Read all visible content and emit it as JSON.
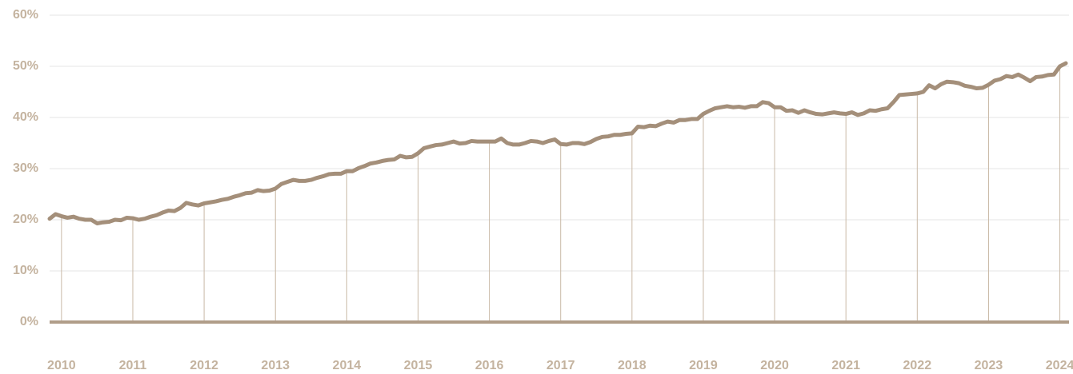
{
  "chart_data": {
    "type": "line",
    "categories": [
      null,
      null,
      "2010",
      null,
      null,
      null,
      null,
      null,
      null,
      null,
      null,
      null,
      null,
      null,
      "2011",
      null,
      null,
      null,
      null,
      null,
      null,
      null,
      null,
      null,
      null,
      null,
      "2012",
      null,
      null,
      null,
      null,
      null,
      null,
      null,
      null,
      null,
      null,
      null,
      "2013",
      null,
      null,
      null,
      null,
      null,
      null,
      null,
      null,
      null,
      null,
      null,
      "2014",
      null,
      null,
      null,
      null,
      null,
      null,
      null,
      null,
      null,
      null,
      null,
      "2015",
      null,
      null,
      null,
      null,
      null,
      null,
      null,
      null,
      null,
      null,
      null,
      "2016",
      null,
      null,
      null,
      null,
      null,
      null,
      null,
      null,
      null,
      null,
      null,
      "2017",
      null,
      null,
      null,
      null,
      null,
      null,
      null,
      null,
      null,
      null,
      null,
      "2018",
      null,
      null,
      null,
      null,
      null,
      null,
      null,
      null,
      null,
      null,
      null,
      "2019",
      null,
      null,
      null,
      null,
      null,
      null,
      null,
      null,
      null,
      null,
      null,
      "2020",
      null,
      null,
      null,
      null,
      null,
      null,
      null,
      null,
      null,
      null,
      null,
      "2021",
      null,
      null,
      null,
      null,
      null,
      null,
      null,
      null,
      null,
      null,
      null,
      "2022",
      null,
      null,
      null,
      null,
      null,
      null,
      null,
      null,
      null,
      null,
      null,
      "2023",
      null,
      null,
      null,
      null,
      null,
      null,
      null,
      null,
      null,
      null,
      null,
      "2024",
      null
    ],
    "values": [
      20.2,
      21.1,
      20.7,
      20.4,
      20.6,
      20.2,
      20.0,
      20.0,
      19.3,
      19.5,
      19.6,
      20.0,
      19.9,
      20.4,
      20.3,
      20.0,
      20.2,
      20.6,
      20.9,
      21.4,
      21.8,
      21.7,
      22.3,
      23.3,
      23.0,
      22.8,
      23.2,
      23.4,
      23.6,
      23.9,
      24.1,
      24.5,
      24.8,
      25.2,
      25.3,
      25.8,
      25.6,
      25.7,
      26.1,
      27.0,
      27.4,
      27.8,
      27.6,
      27.6,
      27.8,
      28.2,
      28.5,
      28.9,
      29.0,
      29.0,
      29.5,
      29.5,
      30.1,
      30.5,
      31.0,
      31.2,
      31.5,
      31.7,
      31.8,
      32.5,
      32.2,
      32.3,
      33.0,
      34.0,
      34.3,
      34.6,
      34.7,
      35.0,
      35.3,
      34.9,
      35.0,
      35.4,
      35.3,
      35.3,
      35.3,
      35.3,
      35.9,
      35.0,
      34.7,
      34.7,
      35.0,
      35.4,
      35.3,
      35.0,
      35.4,
      35.7,
      34.8,
      34.7,
      35.0,
      35.0,
      34.8,
      35.2,
      35.8,
      36.2,
      36.3,
      36.6,
      36.6,
      36.8,
      36.9,
      38.2,
      38.1,
      38.4,
      38.3,
      38.8,
      39.2,
      39.0,
      39.5,
      39.5,
      39.7,
      39.7,
      40.7,
      41.3,
      41.8,
      42.0,
      42.2,
      42.0,
      42.1,
      41.9,
      42.2,
      42.2,
      43.0,
      42.8,
      42.0,
      42.0,
      41.3,
      41.4,
      40.9,
      41.4,
      41.0,
      40.7,
      40.6,
      40.8,
      41.0,
      40.8,
      40.7,
      41.0,
      40.5,
      40.8,
      41.4,
      41.3,
      41.6,
      41.8,
      43.0,
      44.4,
      44.5,
      44.6,
      44.7,
      45.0,
      46.3,
      45.7,
      46.5,
      47.0,
      46.9,
      46.7,
      46.2,
      46.0,
      45.7,
      45.8,
      46.4,
      47.2,
      47.5,
      48.1,
      47.9,
      48.4,
      47.8,
      47.1,
      47.9,
      48.0,
      48.3,
      48.4,
      50.0,
      50.6
    ],
    "color": "#a48f7a",
    "ylim": [
      0,
      60
    ],
    "yticks": [
      {
        "value": 0,
        "label": "0%"
      },
      {
        "value": 10,
        "label": "10%"
      },
      {
        "value": 20,
        "label": "20%"
      },
      {
        "value": 30,
        "label": "30%"
      },
      {
        "value": 40,
        "label": "40%"
      },
      {
        "value": 50,
        "label": "50%"
      },
      {
        "value": 60,
        "label": "60%"
      }
    ],
    "grid": true
  }
}
